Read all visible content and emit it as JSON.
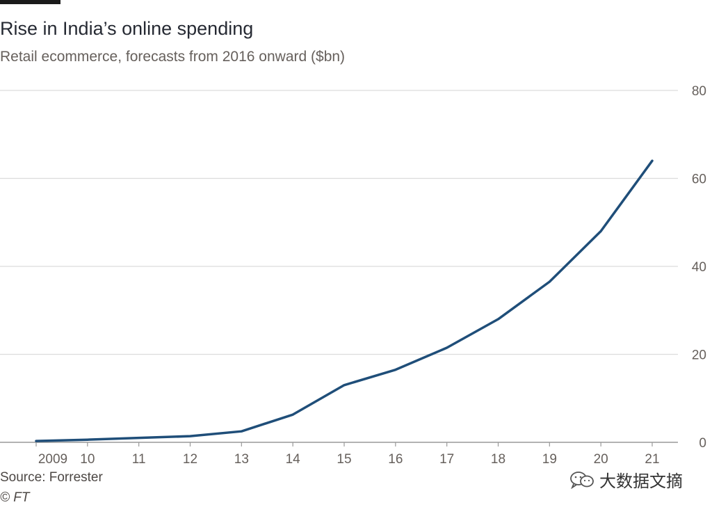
{
  "header": {
    "title": "Rise in India’s online spending",
    "subtitle": "Retail ecommerce, forecasts from 2016 onward ($bn)"
  },
  "footer": {
    "source": "Source: Forrester",
    "copyright": "© FT"
  },
  "watermark": {
    "text": "大数据文摘",
    "icon": "wechat-icon"
  },
  "colors": {
    "line": "#1f4e79",
    "grid": "#dcdcdc",
    "axis": "#999999",
    "tick_text": "#66605c"
  },
  "chart_data": {
    "type": "line",
    "title": "Rise in India’s online spending",
    "subtitle": "Retail ecommerce, forecasts from 2016 onward ($bn)",
    "xlabel": "",
    "ylabel": "",
    "x_tick_labels": [
      "2009",
      "10",
      "11",
      "12",
      "13",
      "14",
      "15",
      "16",
      "17",
      "18",
      "19",
      "20",
      "21"
    ],
    "y_tick_labels": [
      "0",
      "20",
      "40",
      "60",
      "80"
    ],
    "y_ticks": [
      0,
      20,
      40,
      60,
      80
    ],
    "ylim": [
      0,
      80
    ],
    "grid": true,
    "y_axis_side": "right",
    "series": [
      {
        "name": "Retail ecommerce",
        "x": [
          2009,
          2010,
          2011,
          2012,
          2013,
          2014,
          2015,
          2016,
          2017,
          2018,
          2019,
          2020,
          2021
        ],
        "values": [
          0.3,
          0.6,
          1.0,
          1.4,
          2.5,
          6.3,
          13.0,
          16.5,
          21.5,
          28.0,
          36.5,
          48.0,
          64.0
        ]
      }
    ]
  }
}
